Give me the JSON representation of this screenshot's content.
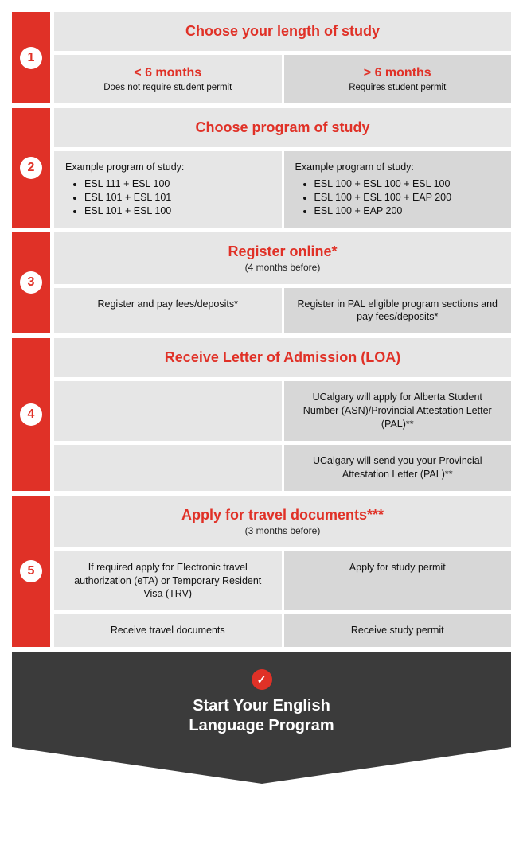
{
  "colors": {
    "accent": "#e03127",
    "panel_light": "#e6e6e6",
    "panel_dark": "#d7d7d7",
    "final_bg": "#3b3b3b",
    "text": "#111111",
    "white": "#ffffff"
  },
  "steps": [
    {
      "num": "1",
      "title": "Choose your length of study",
      "subtitle": "",
      "left": {
        "headline": "< 6 months",
        "sub": "Does not require student permit"
      },
      "right": {
        "headline": "> 6 months",
        "sub": "Requires student permit"
      }
    },
    {
      "num": "2",
      "title": "Choose program of study",
      "subtitle": "",
      "left_label": "Example program of study:",
      "left_items": [
        "ESL 111 + ESL 100",
        "ESL 101 + ESL 101",
        "ESL 101 + ESL 100"
      ],
      "right_label": "Example program of study:",
      "right_items": [
        "ESL 100 + ESL 100 + ESL 100",
        "ESL 100 + ESL 100 + EAP 200",
        "ESL 100 + EAP 200"
      ]
    },
    {
      "num": "3",
      "title": "Register online*",
      "subtitle": "(4 months before)",
      "left_text": "Register and pay fees/deposits*",
      "right_text": "Register in PAL eligible program sections and pay fees/deposits*"
    },
    {
      "num": "4",
      "title": "Receive Letter of Admission (LOA)",
      "subtitle": "",
      "rows": [
        {
          "left": "",
          "right": "UCalgary will apply for Alberta Student Number (ASN)/Provincial Attestation Letter (PAL)**"
        },
        {
          "left": "",
          "right": "UCalgary will send you your Provincial Attestation Letter (PAL)**"
        }
      ]
    },
    {
      "num": "5",
      "title": "Apply for travel documents***",
      "subtitle": "(3 months before)",
      "rows": [
        {
          "left": "If required apply for Electronic travel authorization (eTA) or Temporary Resident Visa (TRV)",
          "right": "Apply for study permit"
        },
        {
          "left": "Receive travel documents",
          "right": "Receive study permit"
        }
      ]
    }
  ],
  "final": {
    "check": "✓",
    "line1": "Start Your English",
    "line2": "Language Program"
  }
}
